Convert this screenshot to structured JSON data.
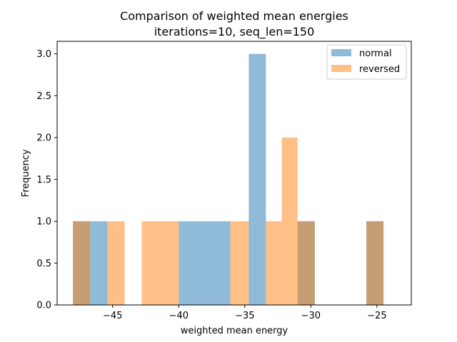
{
  "chart_data": {
    "type": "bar",
    "title": "Comparison of weighted mean energies",
    "subtitle": "iterations=10, seq_len=150",
    "xlabel": "weighted mean energy",
    "ylabel": "Frequency",
    "xlim": [
      -49.2,
      -22.4
    ],
    "ylim": [
      0,
      3.15
    ],
    "xticks": [
      -45,
      -40,
      -35,
      -30,
      -25
    ],
    "xtick_labels": [
      "−45",
      "−40",
      "−35",
      "−30",
      "−25"
    ],
    "yticks": [
      0.0,
      0.5,
      1.0,
      1.5,
      2.0,
      2.5,
      3.0
    ],
    "ytick_labels": [
      "0.0",
      "0.5",
      "1.0",
      "1.5",
      "2.0",
      "2.5",
      "3.0"
    ],
    "grid": false,
    "legend_position": "top-right",
    "series": [
      {
        "name": "normal",
        "color": "#1f77b4",
        "opacity": 0.5,
        "bins": [
          {
            "x0": -48.0,
            "x1": -46.7,
            "count": 1
          },
          {
            "x0": -46.7,
            "x1": -45.4,
            "count": 1
          },
          {
            "x0": -40.0,
            "x1": -38.7,
            "count": 1
          },
          {
            "x0": -38.7,
            "x1": -37.4,
            "count": 1
          },
          {
            "x0": -37.4,
            "x1": -36.1,
            "count": 1
          },
          {
            "x0": -34.7,
            "x1": -33.4,
            "count": 3
          },
          {
            "x0": -31.0,
            "x1": -29.7,
            "count": 1
          },
          {
            "x0": -25.8,
            "x1": -24.5,
            "count": 1
          }
        ]
      },
      {
        "name": "reversed",
        "color": "#ff7f0e",
        "opacity": 0.5,
        "bins": [
          {
            "x0": -48.0,
            "x1": -46.7,
            "count": 1
          },
          {
            "x0": -45.4,
            "x1": -44.1,
            "count": 1
          },
          {
            "x0": -42.8,
            "x1": -41.5,
            "count": 1
          },
          {
            "x0": -41.5,
            "x1": -40.0,
            "count": 1
          },
          {
            "x0": -36.1,
            "x1": -34.7,
            "count": 1
          },
          {
            "x0": -33.4,
            "x1": -32.2,
            "count": 1
          },
          {
            "x0": -32.2,
            "x1": -31.0,
            "count": 2
          },
          {
            "x0": -31.0,
            "x1": -29.7,
            "count": 1
          },
          {
            "x0": -25.8,
            "x1": -24.5,
            "count": 1
          }
        ]
      }
    ]
  }
}
